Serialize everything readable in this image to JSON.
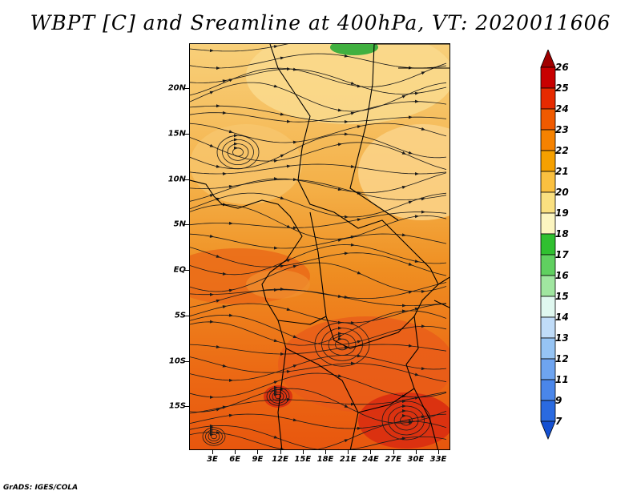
{
  "title": "WBPT [C] and Sreamline at 400hPa, VT: 2020011606",
  "footer": "GrADS: IGES/COLA",
  "map": {
    "lat_labels": [
      "20N",
      "15N",
      "10N",
      "5N",
      "EQ",
      "5S",
      "10S",
      "15S"
    ],
    "lat_values": [
      20,
      15,
      10,
      5,
      0,
      -5,
      -10,
      -15
    ],
    "lon_labels": [
      "3E",
      "6E",
      "9E",
      "12E",
      "15E",
      "18E",
      "21E",
      "24E",
      "27E",
      "30E",
      "33E"
    ],
    "lon_values": [
      3,
      6,
      9,
      12,
      15,
      18,
      21,
      24,
      27,
      30,
      33
    ]
  },
  "colorbar": {
    "labels": [
      "26",
      "25",
      "24",
      "23",
      "22",
      "21",
      "20",
      "19",
      "18",
      "17",
      "16",
      "15",
      "14",
      "13",
      "12",
      "11",
      "9",
      "7"
    ],
    "colors": [
      "#a00000",
      "#c80000",
      "#e62a00",
      "#f05a00",
      "#f58200",
      "#f5a000",
      "#fac040",
      "#fae080",
      "#fcf5c0",
      "#30c030",
      "#60d060",
      "#a0e6a0",
      "#e0f8f0",
      "#c0dcf8",
      "#96c4f4",
      "#6ea4f0",
      "#4a86ea",
      "#2a6ae0",
      "#1450d2"
    ]
  }
}
